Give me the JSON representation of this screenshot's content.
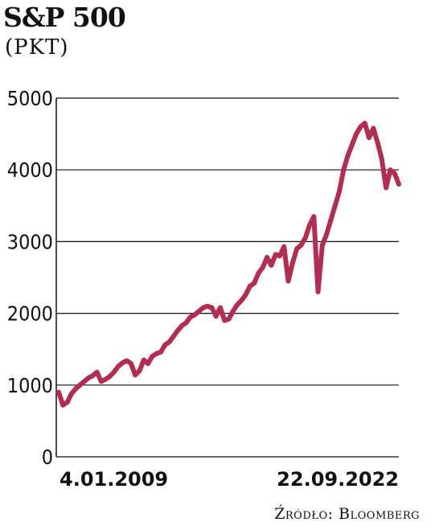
{
  "chart_data": {
    "type": "line",
    "title": "S&P 500",
    "subtitle": "(PKT)",
    "source": "Źródło: Bloomberg",
    "ylim": [
      0,
      5000
    ],
    "yticks": [
      "0",
      "1000",
      "2000",
      "3000",
      "4000",
      "5000"
    ],
    "x_labels": [
      "4.01.2009",
      "22.09.2022"
    ],
    "line_color": "#b32d51",
    "grid": true,
    "series": [
      {
        "values": [
          [
            0,
            900
          ],
          [
            1,
            720
          ],
          [
            2,
            760
          ],
          [
            3,
            880
          ],
          [
            4,
            950
          ],
          [
            5,
            1000
          ],
          [
            6,
            1050
          ],
          [
            7,
            1100
          ],
          [
            8,
            1130
          ],
          [
            9,
            1180
          ],
          [
            10,
            1050
          ],
          [
            11,
            1080
          ],
          [
            12,
            1120
          ],
          [
            13,
            1180
          ],
          [
            14,
            1260
          ],
          [
            15,
            1310
          ],
          [
            16,
            1340
          ],
          [
            17,
            1300
          ],
          [
            18,
            1140
          ],
          [
            19,
            1200
          ],
          [
            20,
            1350
          ],
          [
            21,
            1300
          ],
          [
            22,
            1400
          ],
          [
            23,
            1440
          ],
          [
            24,
            1460
          ],
          [
            25,
            1560
          ],
          [
            26,
            1600
          ],
          [
            27,
            1680
          ],
          [
            28,
            1760
          ],
          [
            29,
            1830
          ],
          [
            30,
            1870
          ],
          [
            31,
            1950
          ],
          [
            32,
            1980
          ],
          [
            33,
            2030
          ],
          [
            34,
            2080
          ],
          [
            35,
            2100
          ],
          [
            36,
            2080
          ],
          [
            37,
            1960
          ],
          [
            38,
            2080
          ],
          [
            39,
            1900
          ],
          [
            40,
            1920
          ],
          [
            41,
            2030
          ],
          [
            42,
            2120
          ],
          [
            43,
            2180
          ],
          [
            44,
            2260
          ],
          [
            45,
            2380
          ],
          [
            46,
            2420
          ],
          [
            47,
            2560
          ],
          [
            48,
            2640
          ],
          [
            49,
            2780
          ],
          [
            50,
            2670
          ],
          [
            51,
            2820
          ],
          [
            52,
            2800
          ],
          [
            53,
            2930
          ],
          [
            54,
            2450
          ],
          [
            55,
            2700
          ],
          [
            56,
            2900
          ],
          [
            57,
            2950
          ],
          [
            58,
            3050
          ],
          [
            59,
            3230
          ],
          [
            60,
            3350
          ],
          [
            61,
            2300
          ],
          [
            62,
            2950
          ],
          [
            63,
            3100
          ],
          [
            64,
            3300
          ],
          [
            65,
            3500
          ],
          [
            66,
            3700
          ],
          [
            67,
            4000
          ],
          [
            68,
            4200
          ],
          [
            69,
            4350
          ],
          [
            70,
            4500
          ],
          [
            71,
            4600
          ],
          [
            72,
            4650
          ],
          [
            73,
            4450
          ],
          [
            74,
            4580
          ],
          [
            75,
            4380
          ],
          [
            76,
            4150
          ],
          [
            77,
            3750
          ],
          [
            78,
            4000
          ],
          [
            79,
            3950
          ],
          [
            80,
            3800
          ]
        ]
      }
    ]
  }
}
